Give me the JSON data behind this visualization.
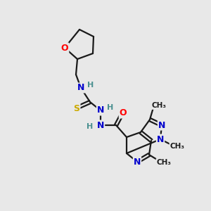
{
  "bg_color": "#e8e8e8",
  "bond_color": "#1a1a1a",
  "atom_colors": {
    "O": "#ff0000",
    "N": "#0000cc",
    "S": "#ccaa00",
    "C": "#1a1a1a",
    "H": "#4a9090"
  },
  "figsize": [
    3.0,
    3.0
  ],
  "dpi": 100,
  "xlim": [
    0,
    300
  ],
  "ylim": [
    0,
    300
  ]
}
